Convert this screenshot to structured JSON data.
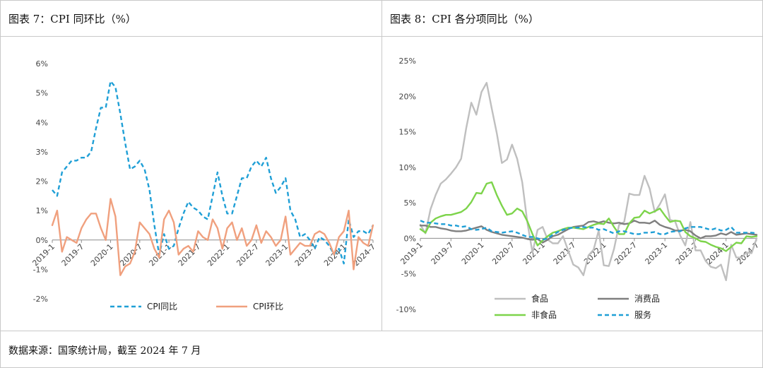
{
  "left_title": "图表 7：CPI 同环比（%）",
  "right_title": "图表 8：CPI 各分项同比（%）",
  "source": "数据来源：国家统计局，截至 2024 年 7 月",
  "chart_data": [
    {
      "type": "line",
      "title": "图表 7：CPI 同环比（%）",
      "xlabel": "",
      "ylabel": "%",
      "ylim": [
        -2,
        6
      ],
      "yticks": [
        "-2%",
        "-1%",
        "0%",
        "1%",
        "2%",
        "3%",
        "4%",
        "5%",
        "6%"
      ],
      "xtick_labels": [
        "2019-1",
        "2019-7",
        "2020-1",
        "2020-7",
        "2021-1",
        "2021-7",
        "2022-1",
        "2022-7",
        "2023-1",
        "2023-7",
        "2024-1",
        "2024-7"
      ],
      "legend": "bottom",
      "series": [
        {
          "name": "CPI同比",
          "color": "#1f9fd6",
          "style": "dashed",
          "values": [
            1.7,
            1.5,
            2.3,
            2.5,
            2.7,
            2.7,
            2.8,
            2.8,
            3.0,
            3.8,
            4.5,
            4.5,
            5.4,
            5.2,
            4.3,
            3.3,
            2.4,
            2.5,
            2.7,
            2.4,
            1.7,
            0.5,
            -0.5,
            0.2,
            -0.3,
            -0.2,
            0.4,
            0.9,
            1.3,
            1.1,
            1.0,
            0.8,
            0.7,
            1.5,
            2.3,
            1.5,
            0.9,
            0.9,
            1.5,
            2.1,
            2.1,
            2.5,
            2.7,
            2.5,
            2.8,
            2.1,
            1.6,
            1.8,
            2.1,
            1.0,
            0.7,
            0.1,
            0.2,
            0.0,
            -0.3,
            0.1,
            0.0,
            -0.2,
            -0.5,
            -0.3,
            -0.8,
            0.7,
            0.1,
            0.3,
            0.3,
            0.2,
            0.5
          ]
        },
        {
          "name": "CPI环比",
          "color": "#f0a07e",
          "style": "solid",
          "values": [
            0.5,
            1.0,
            -0.4,
            0.1,
            0.0,
            -0.1,
            0.4,
            0.7,
            0.9,
            0.9,
            0.4,
            0.0,
            1.4,
            0.8,
            -1.2,
            -0.9,
            -0.8,
            -0.4,
            0.6,
            0.4,
            0.2,
            -0.3,
            -0.6,
            0.7,
            1.0,
            0.6,
            -0.5,
            -0.3,
            -0.2,
            -0.4,
            0.3,
            0.1,
            0.0,
            0.7,
            0.4,
            -0.3,
            0.4,
            0.6,
            0.0,
            0.4,
            -0.2,
            0.0,
            0.5,
            -0.1,
            0.3,
            0.1,
            -0.2,
            0.0,
            0.8,
            -0.5,
            -0.3,
            -0.1,
            -0.2,
            -0.2,
            0.2,
            0.3,
            0.2,
            -0.1,
            -0.5,
            0.1,
            0.3,
            1.0,
            -1.0,
            0.1,
            -0.1,
            -0.2,
            0.5
          ]
        }
      ]
    },
    {
      "type": "line",
      "title": "图表 8：CPI 各分项同比（%）",
      "xlabel": "",
      "ylabel": "%",
      "ylim": [
        -10,
        25
      ],
      "yticks": [
        "-10%",
        "-5%",
        "0%",
        "5%",
        "10%",
        "15%",
        "20%",
        "25%"
      ],
      "xtick_labels": [
        "2019-1",
        "2019-7",
        "2020-1",
        "2020-7",
        "2021-1",
        "2021-7",
        "2022-1",
        "2022-7",
        "2023-1",
        "2023-7",
        "2024-1",
        "2024-7"
      ],
      "legend": "bottom",
      "series": [
        {
          "name": "食品",
          "color": "#bfbfbf",
          "style": "solid",
          "values": [
            1.9,
            0.7,
            4.1,
            6.1,
            7.7,
            8.3,
            9.1,
            10.0,
            11.2,
            15.5,
            19.1,
            17.4,
            20.6,
            21.9,
            18.3,
            14.8,
            10.6,
            11.1,
            13.2,
            11.2,
            7.9,
            2.2,
            -2.0,
            1.2,
            1.6,
            -0.2,
            -0.7,
            -0.7,
            0.3,
            -1.7,
            -3.7,
            -4.1,
            -5.2,
            -2.4,
            -1.6,
            1.1,
            -3.8,
            -3.9,
            -1.5,
            1.9,
            2.3,
            6.3,
            6.1,
            6.1,
            8.8,
            7.0,
            3.7,
            4.8,
            6.2,
            2.6,
            2.4,
            0.4,
            -1.0,
            2.3,
            -1.7,
            -1.7,
            -3.2,
            -4.0,
            -4.2,
            -3.7,
            -5.9,
            -0.9,
            -2.7,
            -2.7,
            -2.0,
            -2.1,
            0.0
          ]
        },
        {
          "name": "消费品",
          "color": "#7f7f7f",
          "style": "solid",
          "values": [
            1.8,
            1.8,
            1.6,
            1.6,
            1.4,
            1.3,
            1.1,
            1.0,
            1.0,
            1.1,
            1.3,
            1.5,
            1.7,
            1.2,
            0.9,
            0.7,
            0.5,
            0.4,
            0.3,
            0.2,
            0.1,
            -0.1,
            -0.2,
            -0.1,
            -0.6,
            -0.2,
            0.3,
            0.5,
            0.9,
            1.3,
            1.6,
            1.7,
            1.8,
            2.3,
            2.4,
            2.2,
            2.4,
            2.2,
            2.1,
            2.2,
            2.0,
            2.1,
            2.5,
            2.2,
            2.2,
            2.1,
            2.5,
            1.9,
            1.6,
            1.4,
            1.1,
            1.1,
            1.2,
            1.0,
            0.4,
            0.0,
            0.3,
            0.3,
            0.4,
            0.7,
            0.5,
            0.9,
            0.5,
            0.6,
            0.7,
            0.6,
            0.5
          ]
        },
        {
          "name": "非食品",
          "color": "#7dd44b",
          "style": "solid",
          "values": [
            1.3,
            0.8,
            2.2,
            2.8,
            3.1,
            3.3,
            3.3,
            3.5,
            3.7,
            4.2,
            5.1,
            6.4,
            6.3,
            7.7,
            7.9,
            6.1,
            4.6,
            3.3,
            3.5,
            4.2,
            3.8,
            2.4,
            0.6,
            -1.0,
            -0.3,
            0.3,
            0.8,
            1.0,
            1.3,
            1.5,
            1.5,
            1.4,
            1.3,
            1.6,
            1.9,
            2.1,
            2.0,
            2.8,
            1.6,
            0.6,
            0.6,
            2.1,
            2.9,
            3.0,
            3.9,
            3.5,
            3.8,
            4.2,
            3.2,
            2.3,
            2.5,
            2.4,
            0.9,
            0.3,
            0.0,
            -0.4,
            -0.5,
            -0.9,
            -1.2,
            -1.4,
            -1.8,
            -1.2,
            -0.6,
            -0.7,
            0.3,
            0.2,
            0.3
          ]
        },
        {
          "name": "服务",
          "color": "#1f9fd6",
          "style": "dashed",
          "values": [
            2.5,
            2.2,
            2.2,
            2.1,
            2.0,
            2.0,
            1.8,
            1.8,
            1.6,
            1.7,
            1.3,
            1.2,
            1.3,
            1.5,
            1.0,
            0.9,
            0.8,
            0.9,
            1.0,
            0.8,
            0.5,
            0.2,
            0.2,
            0.0,
            -0.2,
            0.0,
            0.5,
            0.9,
            1.2,
            1.4,
            1.5,
            1.5,
            1.6,
            1.5,
            1.5,
            1.2,
            1.3,
            1.0,
            0.7,
            1.0,
            1.0,
            0.8,
            0.6,
            0.6,
            0.8,
            0.8,
            0.9,
            0.6,
            0.6,
            0.9,
            1.0,
            1.0,
            1.4,
            1.6,
            1.6,
            1.6,
            1.4,
            1.2,
            1.4,
            1.1,
            1.2,
            1.6,
            0.8,
            0.8,
            0.8,
            0.8,
            0.7
          ]
        }
      ]
    }
  ]
}
